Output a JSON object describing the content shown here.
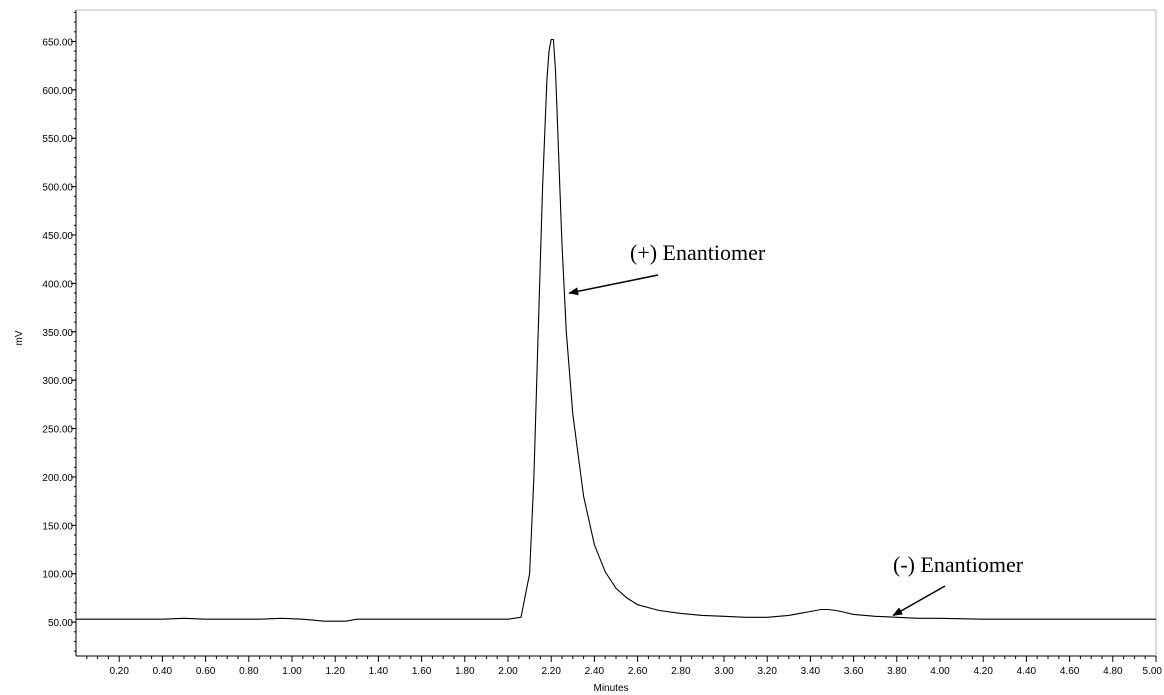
{
  "chart_data": {
    "type": "line",
    "title": "",
    "xlabel": "Minutes",
    "ylabel": "mV",
    "xlim": [
      0.0,
      5.0
    ],
    "ylim": [
      15.0,
      682.5
    ],
    "x_ticks": [
      0.2,
      0.4,
      0.6,
      0.8,
      1.0,
      1.2,
      1.4,
      1.6,
      1.8,
      2.0,
      2.2,
      2.4,
      2.6,
      2.8,
      3.0,
      3.2,
      3.4,
      3.6,
      3.8,
      4.0,
      4.2,
      4.4,
      4.6,
      4.8,
      5.0
    ],
    "x_tick_labels": [
      "0.20",
      "0.40",
      "0.60",
      "0.80",
      "1.00",
      "1.20",
      "1.40",
      "1.60",
      "1.80",
      "2.00",
      "2.20",
      "2.40",
      "2.60",
      "2.80",
      "3.00",
      "3.20",
      "3.40",
      "3.60",
      "3.80",
      "4.00",
      "4.20",
      "4.40",
      "4.60",
      "4.80",
      "5.00"
    ],
    "y_ticks": [
      50,
      100,
      150,
      200,
      250,
      300,
      350,
      400,
      450,
      500,
      550,
      600,
      650
    ],
    "y_tick_labels": [
      "50.00",
      "100.00",
      "150.00",
      "200.00",
      "250.00",
      "300.00",
      "350.00",
      "400.00",
      "450.00",
      "500.00",
      "550.00",
      "600.00",
      "650.00"
    ],
    "grid": false,
    "series": [
      {
        "x": [
          0.0,
          0.4,
          0.5,
          0.6,
          0.85,
          0.95,
          1.05,
          1.15,
          1.25,
          1.3,
          1.35,
          1.5,
          1.8,
          2.0,
          2.06,
          2.1,
          2.12,
          2.14,
          2.16,
          2.18,
          2.19,
          2.2,
          2.21,
          2.22,
          2.23,
          2.24,
          2.25,
          2.27,
          2.3,
          2.35,
          2.4,
          2.45,
          2.5,
          2.55,
          2.6,
          2.65,
          2.7,
          2.8,
          2.9,
          3.0,
          3.1,
          3.2,
          3.3,
          3.35,
          3.4,
          3.45,
          3.48,
          3.52,
          3.56,
          3.6,
          3.7,
          3.8,
          3.9,
          4.0,
          4.2,
          4.5,
          5.0
        ],
        "y": [
          53,
          53,
          54,
          53,
          53,
          54,
          53,
          51,
          51,
          53,
          53,
          53,
          53,
          53,
          55,
          100,
          200,
          350,
          500,
          610,
          640,
          652,
          652,
          620,
          560,
          500,
          440,
          350,
          265,
          180,
          130,
          102,
          85,
          75,
          68,
          65,
          62,
          59,
          57,
          56,
          55,
          55,
          57,
          59,
          61,
          63,
          63,
          62,
          60,
          58,
          56,
          55,
          54,
          54,
          53,
          53,
          53
        ]
      }
    ],
    "annotations": [
      {
        "text": "(+) Enantiomer",
        "x": 2.2,
        "y": 390
      },
      {
        "text": "(-) Enantiomer",
        "x": 3.7,
        "y": 57
      }
    ]
  }
}
